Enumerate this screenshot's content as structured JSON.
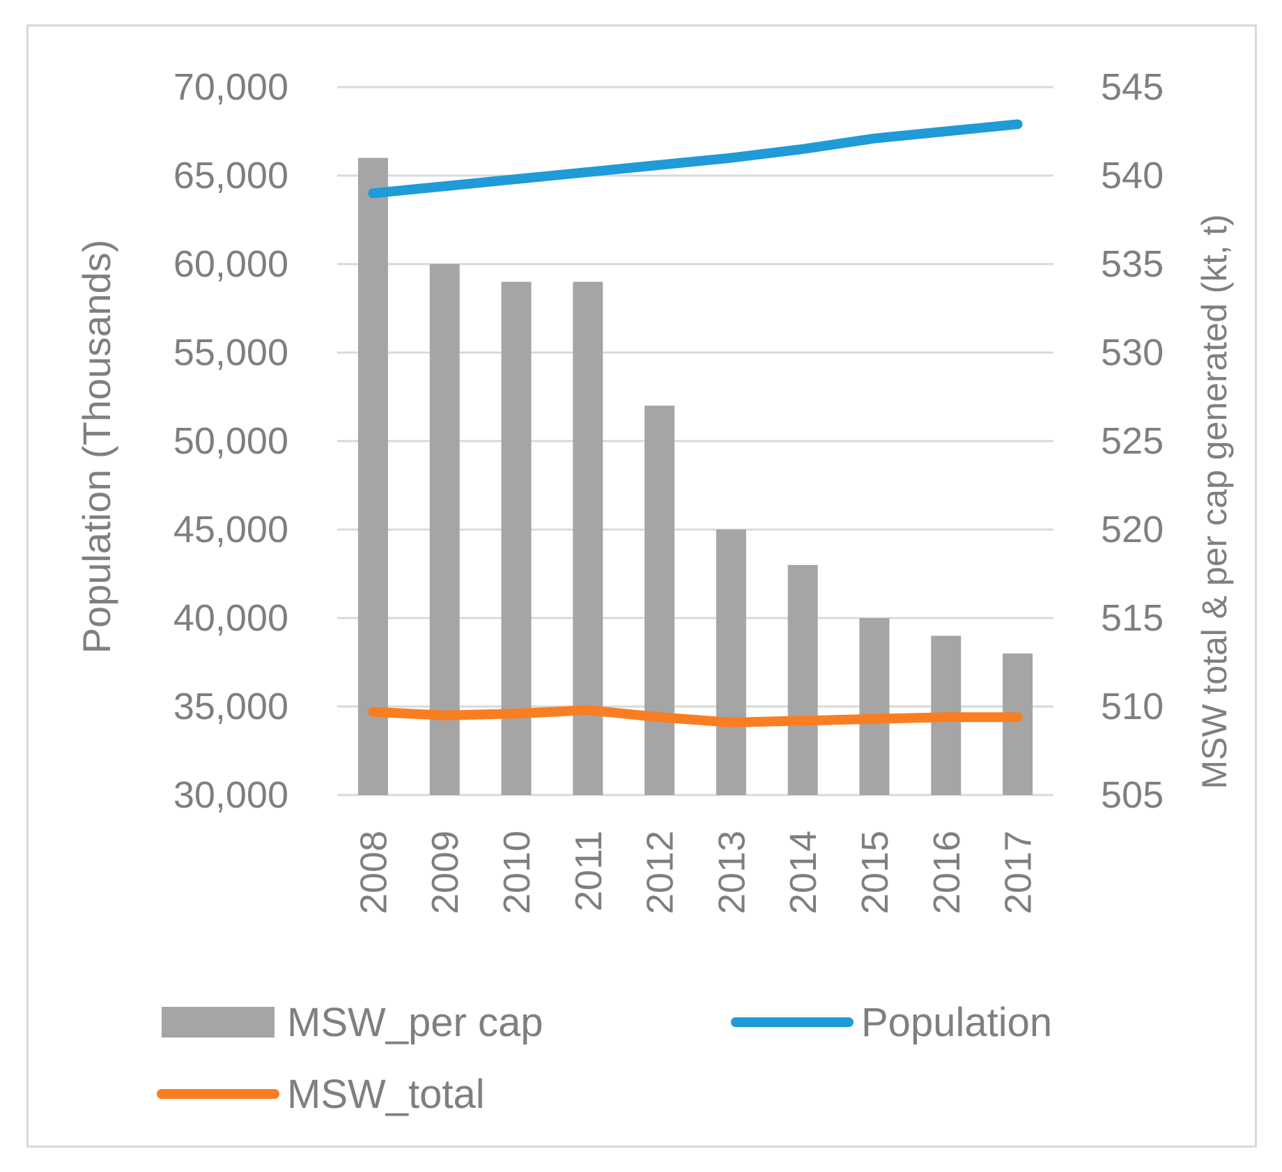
{
  "chart_data": {
    "type": "bar+line",
    "title": "",
    "categories": [
      "2008",
      "2009",
      "2010",
      "2011",
      "2012",
      "2013",
      "2014",
      "2015",
      "2016",
      "2017"
    ],
    "left_axis": {
      "label": "Population (Thousands)",
      "min": 30000,
      "max": 70000,
      "step": 5000,
      "tick_labels": [
        "30,000",
        "35,000",
        "40,000",
        "45,000",
        "50,000",
        "55,000",
        "60,000",
        "65,000",
        "70,000"
      ]
    },
    "right_axis": {
      "label": "MSW total & per cap generated (kt, t)",
      "min": 505,
      "max": 545,
      "step": 5,
      "tick_labels": [
        "505",
        "510",
        "515",
        "520",
        "525",
        "530",
        "535",
        "540",
        "545"
      ]
    },
    "grid": true,
    "series": [
      {
        "name": "MSW_per cap",
        "kind": "bar",
        "axis": "right",
        "color": "#a5a5a5",
        "values": [
          541,
          535,
          534,
          534,
          527,
          520,
          518,
          515,
          514,
          513
        ]
      },
      {
        "name": "Population",
        "kind": "line",
        "axis": "left",
        "color": "#1f9bd7",
        "values": [
          64000,
          64400,
          64800,
          65200,
          65600,
          66000,
          66500,
          67100,
          67500,
          67900
        ]
      },
      {
        "name": "MSW_total",
        "kind": "line",
        "axis": "left",
        "color": "#fa7d22",
        "values": [
          34700,
          34500,
          34600,
          34800,
          34400,
          34100,
          34200,
          34300,
          34400,
          34400
        ]
      }
    ],
    "legend": {
      "placement": "bottom",
      "entries": [
        "MSW_per cap",
        "Population",
        "MSW_total"
      ]
    }
  }
}
